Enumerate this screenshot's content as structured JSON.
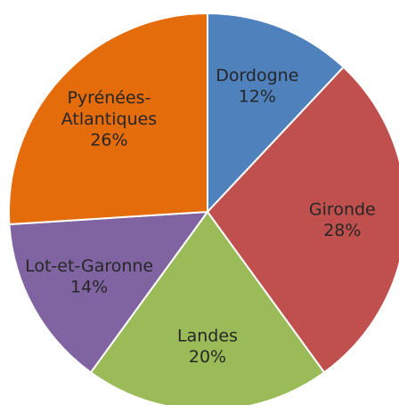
{
  "chart_data": {
    "type": "pie",
    "categories": [
      "Dordogne",
      "Gironde",
      "Landes",
      "Lot-et-Garonne",
      "Pyrénées-Atlantiques"
    ],
    "values": [
      12,
      28,
      20,
      14,
      26
    ],
    "value_labels": [
      "12%",
      "28%",
      "20%",
      "14%",
      "26%"
    ],
    "colors": [
      "#4f81bd",
      "#c0504d",
      "#9bbb59",
      "#8064a2",
      "#e46c0a"
    ]
  }
}
